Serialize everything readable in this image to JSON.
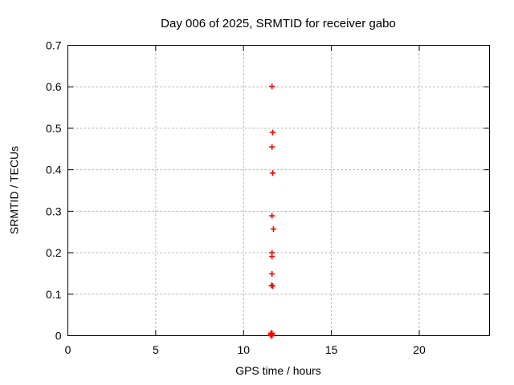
{
  "chart_data": {
    "type": "scatter",
    "title": "Day 006 of 2025, SRMTID for receiver gabo",
    "xlabel": "GPS time / hours",
    "ylabel": "SRMTID / TECUs",
    "xlim": [
      0,
      24
    ],
    "ylim": [
      0,
      0.7
    ],
    "xticks": [
      0,
      5,
      10,
      15,
      20
    ],
    "yticks": [
      0,
      0.1,
      0.2,
      0.3,
      0.4,
      0.5,
      0.6,
      0.7
    ],
    "grid": true,
    "legend": "none",
    "marker": "plus",
    "marker_color": "#ff0000",
    "grid_color": "#b0b0b0",
    "axis_color": "#000000",
    "background_color": "#ffffff",
    "series": [
      {
        "name": "SRMTID",
        "points": [
          [
            11.62,
            0.601
          ],
          [
            11.66,
            0.49
          ],
          [
            11.62,
            0.455
          ],
          [
            11.66,
            0.392
          ],
          [
            11.62,
            0.289
          ],
          [
            11.7,
            0.257
          ],
          [
            11.62,
            0.2
          ],
          [
            11.62,
            0.191
          ],
          [
            11.62,
            0.149
          ],
          [
            11.59,
            0.121
          ],
          [
            11.66,
            0.12
          ],
          [
            11.56,
            0.0
          ],
          [
            11.59,
            0.0
          ],
          [
            11.62,
            0.0
          ],
          [
            11.56,
            0.003
          ],
          [
            11.59,
            0.003
          ],
          [
            11.62,
            0.003
          ],
          [
            11.56,
            0.006
          ],
          [
            11.59,
            0.006
          ],
          [
            11.62,
            0.006
          ]
        ]
      }
    ]
  }
}
